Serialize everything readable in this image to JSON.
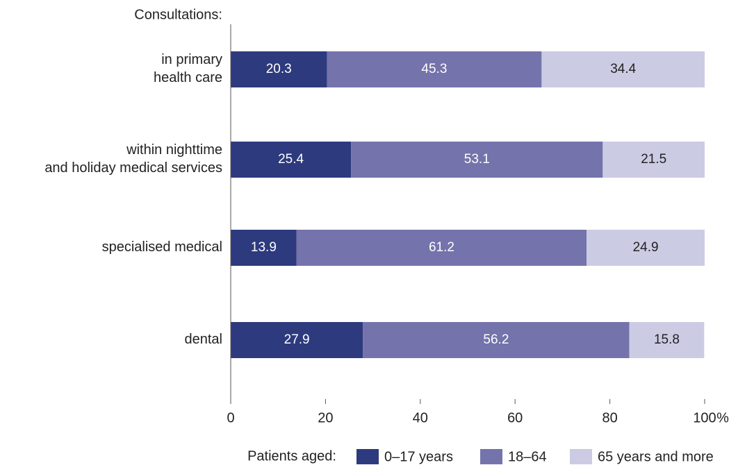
{
  "chart_data": {
    "type": "stacked_barh",
    "axis_title": "Consultations:",
    "categories": [
      [
        "in primary",
        "health care"
      ],
      [
        "within nighttime",
        "and holiday medical services"
      ],
      [
        "specialised medical"
      ],
      [
        "dental"
      ]
    ],
    "series": [
      {
        "name": "0–17 years",
        "color": "#2e3a7e",
        "label_color": "#ffffff",
        "values": [
          20.3,
          25.4,
          13.9,
          27.9
        ]
      },
      {
        "name": "18–64",
        "color": "#7473ab",
        "label_color": "#ffffff",
        "values": [
          45.3,
          53.1,
          61.2,
          56.2
        ]
      },
      {
        "name": "65 years and more",
        "color": "#cbcbe4",
        "label_color": "#222222",
        "values": [
          34.4,
          21.5,
          24.9,
          15.8
        ]
      }
    ],
    "xlim": [
      0,
      100
    ],
    "xticks": [
      0,
      20,
      40,
      60,
      80,
      100
    ],
    "x_unit": "%",
    "legend_title": "Patients aged:",
    "legend": "bottom",
    "grid": false
  }
}
